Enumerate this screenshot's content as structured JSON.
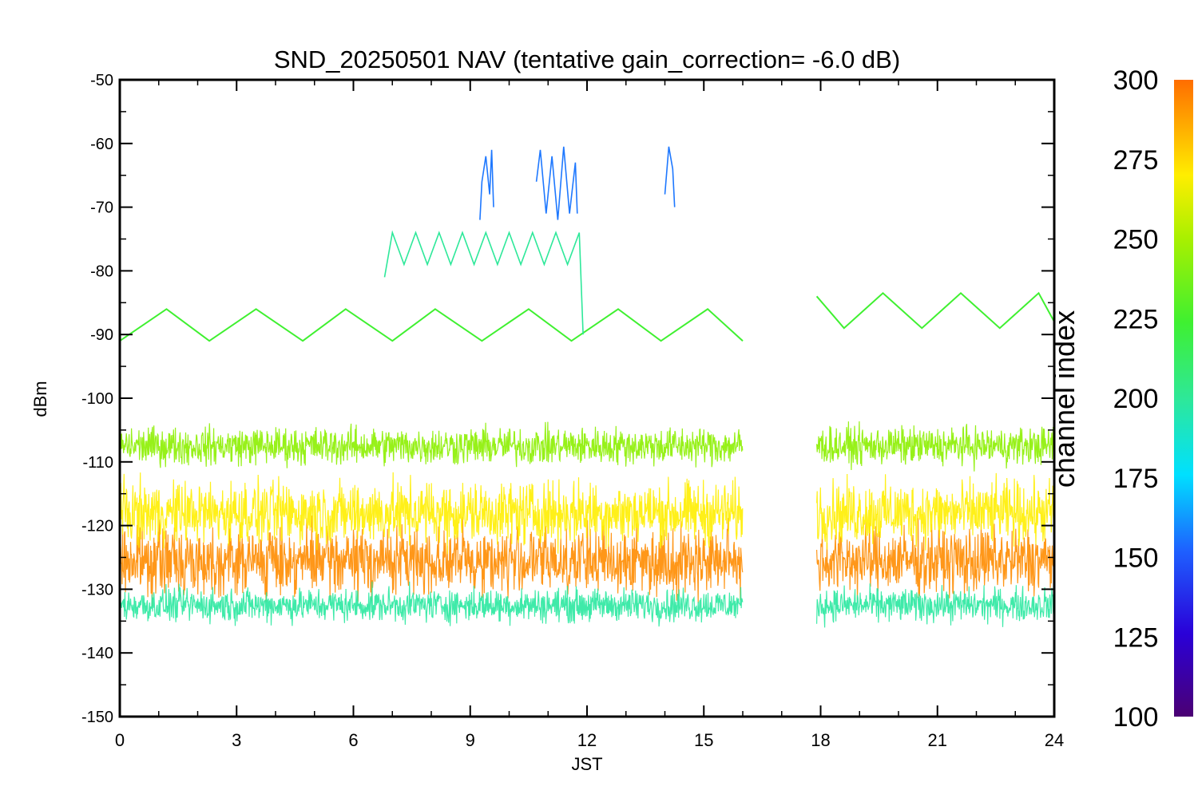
{
  "chart_data": {
    "type": "line",
    "title": "SND_20250501 NAV (tentative gain_correction= -6.0 dB)",
    "xlabel": "JST",
    "ylabel": "dBm",
    "xlim": [
      0,
      24
    ],
    "ylim": [
      -150,
      -50
    ],
    "x_ticks": [
      "0",
      "3",
      "6",
      "9",
      "12",
      "15",
      "18",
      "21",
      "24"
    ],
    "y_ticks": [
      "-50",
      "-60",
      "-70",
      "-80",
      "-90",
      "-100",
      "-110",
      "-120",
      "-130",
      "-140",
      "-150"
    ],
    "data_gap": [
      16.0,
      17.85
    ],
    "colorbar": {
      "label": "channel index",
      "range": [
        100,
        300
      ],
      "ticks": [
        "300",
        "275",
        "250",
        "225",
        "200",
        "175",
        "150",
        "125",
        "100"
      ]
    },
    "series": [
      {
        "channel": 285,
        "color": "#ff8c00",
        "band": "noise",
        "center_dBm": -125.5,
        "spread_dBm": 3.2,
        "extent_x": [
          [
            0,
            16.0
          ],
          [
            17.9,
            24
          ]
        ]
      },
      {
        "channel": 270,
        "color": "#ffee00",
        "band": "noise",
        "center_dBm": -118.0,
        "spread_dBm": 3.0,
        "extent_x": [
          [
            0,
            16.0
          ],
          [
            17.9,
            24
          ]
        ]
      },
      {
        "channel": 240,
        "color": "#8cf000",
        "band": "noise",
        "center_dBm": -107.5,
        "spread_dBm": 1.8,
        "extent_x": [
          [
            0,
            16.0
          ],
          [
            17.9,
            24
          ]
        ]
      },
      {
        "channel": 215,
        "color": "#2ae8a0",
        "band": "noise",
        "center_dBm": -132.5,
        "spread_dBm": 1.6,
        "extent_x": [
          [
            0,
            16.0
          ],
          [
            17.9,
            24
          ]
        ]
      },
      {
        "channel": 235,
        "color": "#3ff030",
        "band": "sinusoid",
        "points": [
          [
            0,
            -91
          ],
          [
            1.2,
            -86
          ],
          [
            2.3,
            -91
          ],
          [
            3.5,
            -86
          ],
          [
            4.7,
            -91
          ],
          [
            5.8,
            -86
          ],
          [
            7.0,
            -91
          ],
          [
            8.1,
            -86
          ],
          [
            9.3,
            -91
          ],
          [
            10.5,
            -86
          ],
          [
            11.6,
            -91
          ],
          [
            12.8,
            -86
          ],
          [
            13.9,
            -91
          ],
          [
            15.1,
            -86
          ],
          [
            16.0,
            -91
          ]
        ]
      },
      {
        "channel": 235,
        "color": "#3ff030",
        "band": "sinusoid",
        "points": [
          [
            17.9,
            -84
          ],
          [
            18.6,
            -89
          ],
          [
            19.6,
            -83.5
          ],
          [
            20.6,
            -89
          ],
          [
            21.6,
            -83.5
          ],
          [
            22.6,
            -89
          ],
          [
            23.6,
            -83.5
          ],
          [
            24.0,
            -88
          ]
        ]
      },
      {
        "channel": 205,
        "color": "#2ee89a",
        "band": "oscillation",
        "points": [
          [
            6.8,
            -81
          ],
          [
            7.0,
            -74
          ],
          [
            7.3,
            -79
          ],
          [
            7.6,
            -74
          ],
          [
            7.9,
            -79
          ],
          [
            8.2,
            -74
          ],
          [
            8.5,
            -79
          ],
          [
            8.8,
            -74
          ],
          [
            9.1,
            -79
          ],
          [
            9.4,
            -74
          ],
          [
            9.7,
            -79
          ],
          [
            10.0,
            -74
          ],
          [
            10.3,
            -79
          ],
          [
            10.6,
            -74
          ],
          [
            10.9,
            -79
          ],
          [
            11.2,
            -74
          ],
          [
            11.5,
            -79
          ],
          [
            11.8,
            -74
          ],
          [
            11.9,
            -90
          ]
        ]
      },
      {
        "channel": 160,
        "color": "#1e78ff",
        "band": "burst",
        "points": [
          [
            9.25,
            -72
          ],
          [
            9.3,
            -66
          ],
          [
            9.4,
            -62
          ],
          [
            9.5,
            -68
          ],
          [
            9.55,
            -61
          ],
          [
            9.6,
            -70
          ]
        ]
      },
      {
        "channel": 160,
        "color": "#1e78ff",
        "band": "burst",
        "points": [
          [
            10.7,
            -66
          ],
          [
            10.8,
            -61
          ],
          [
            10.95,
            -71
          ],
          [
            11.1,
            -62
          ],
          [
            11.25,
            -72
          ],
          [
            11.4,
            -60.5
          ],
          [
            11.55,
            -71
          ],
          [
            11.7,
            -63
          ],
          [
            11.75,
            -71
          ]
        ]
      },
      {
        "channel": 160,
        "color": "#1e78ff",
        "band": "burst",
        "points": [
          [
            14.0,
            -68
          ],
          [
            14.1,
            -60.5
          ],
          [
            14.2,
            -64
          ],
          [
            14.25,
            -70
          ]
        ]
      }
    ],
    "grid": false,
    "legend": "colorbar-right"
  }
}
